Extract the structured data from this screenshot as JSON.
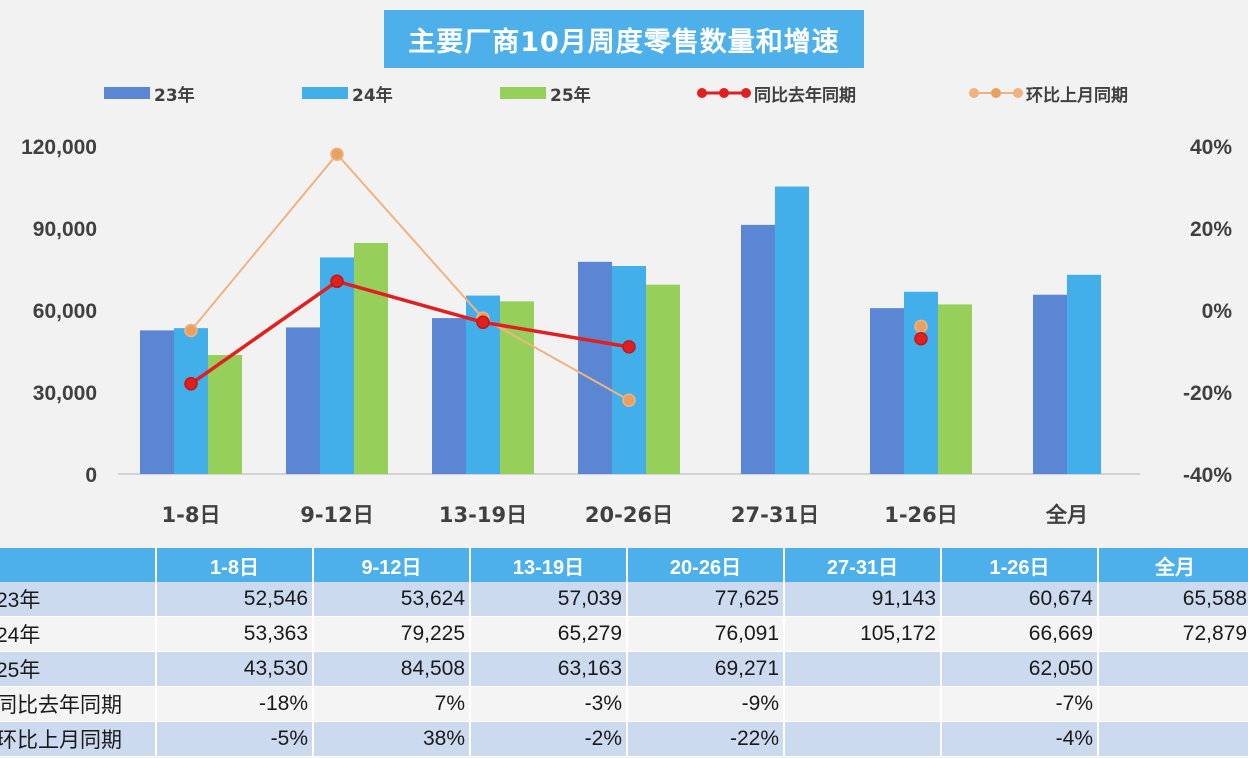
{
  "chart_data": {
    "type": "bar",
    "title": "主要厂商10月周度零售数量和增速",
    "categories": [
      "1-8日",
      "9-12日",
      "13-19日",
      "20-26日",
      "27-31日",
      "1-26日",
      "全月"
    ],
    "series": [
      {
        "name": "23年",
        "type": "bar",
        "axis": "left",
        "color": "#5b86d4",
        "values": [
          52546,
          53624,
          57039,
          77625,
          91143,
          60674,
          65588
        ]
      },
      {
        "name": "24年",
        "type": "bar",
        "axis": "left",
        "color": "#42aeea",
        "values": [
          53363,
          79225,
          65279,
          76091,
          105172,
          66669,
          72879
        ]
      },
      {
        "name": "25年",
        "type": "bar",
        "axis": "left",
        "color": "#96cf5a",
        "values": [
          43530,
          84508,
          63163,
          69271,
          null,
          62050,
          null
        ]
      },
      {
        "name": "同比去年同期",
        "type": "line",
        "axis": "right",
        "color": "#e02020",
        "values": [
          -18,
          7,
          -3,
          -9,
          null,
          -7,
          null
        ]
      },
      {
        "name": "环比上月同期",
        "type": "line",
        "axis": "right",
        "color": "#f2b27f",
        "values": [
          -5,
          38,
          -2,
          -22,
          null,
          -4,
          null
        ]
      }
    ],
    "ylim_left": [
      0,
      120000
    ],
    "yticks_left": [
      "0",
      "30,000",
      "60,000",
      "90,000",
      "120,000"
    ],
    "ylim_right": [
      -40,
      40
    ],
    "yticks_right": [
      "-40%",
      "-20%",
      "0%",
      "20%",
      "40%"
    ],
    "legend_position": "top",
    "grid": false
  },
  "title": "主要厂商10月周度零售数量和增速",
  "legend": [
    "23年",
    "24年",
    "25年",
    "同比去年同期",
    "环比上月同期"
  ],
  "table": {
    "headers": [
      "",
      "1-8日",
      "9-12日",
      "13-19日",
      "20-26日",
      "27-31日",
      "1-26日",
      "全月"
    ],
    "rows": [
      {
        "label": "23年",
        "cells": [
          "52,546",
          "53,624",
          "57,039",
          "77,625",
          "91,143",
          "60,674",
          "65,588"
        ]
      },
      {
        "label": "24年",
        "cells": [
          "53,363",
          "79,225",
          "65,279",
          "76,091",
          "105,172",
          "66,669",
          "72,879"
        ]
      },
      {
        "label": "25年",
        "cells": [
          "43,530",
          "84,508",
          "63,163",
          "69,271",
          "",
          "62,050",
          ""
        ]
      },
      {
        "label": "同比去年同期",
        "cells": [
          "-18%",
          "7%",
          "-3%",
          "-9%",
          "",
          "-7%",
          ""
        ]
      },
      {
        "label": "环比上月同期",
        "cells": [
          "-5%",
          "38%",
          "-2%",
          "-22%",
          "",
          "-4%",
          ""
        ]
      }
    ]
  }
}
